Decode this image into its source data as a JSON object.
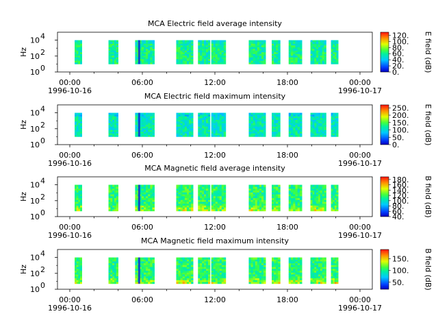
{
  "chart_data": [
    {
      "type": "heatmap",
      "title": "MCA  Electric field average intensity",
      "ylabel": "Hz",
      "y_scale": "log",
      "y_ticks": [
        "10",
        "10",
        "10"
      ],
      "y_tick_exponents": [
        "0",
        "2",
        "4"
      ],
      "x_ticks": [
        "00:00",
        "06:00",
        "12:00",
        "18:00",
        "00:00"
      ],
      "x_date_start": "1996-10-16",
      "x_date_end": "1996-10-17",
      "colorbar": {
        "label": "E field (dB)",
        "ticks": [
          "0.",
          "20.",
          "40.",
          "60.",
          "80.",
          "100.",
          "120."
        ],
        "range": [
          0,
          130
        ]
      },
      "data_intervals_hours": [
        [
          0.4,
          1.0
        ],
        [
          3.2,
          4.0
        ],
        [
          5.4,
          7.0
        ],
        [
          8.8,
          10.2
        ],
        [
          10.6,
          11.6
        ],
        [
          11.7,
          12.9
        ],
        [
          14.8,
          16.2
        ],
        [
          16.7,
          17.4
        ],
        [
          18.1,
          19.2
        ],
        [
          19.9,
          21.2
        ],
        [
          21.6,
          22.2
        ]
      ],
      "freq_range_hz": [
        10,
        10000
      ],
      "mean_level": 60
    },
    {
      "type": "heatmap",
      "title": "MCA  Electric field maximum intensity",
      "ylabel": "Hz",
      "y_scale": "log",
      "y_ticks": [
        "10",
        "10",
        "10"
      ],
      "y_tick_exponents": [
        "0",
        "2",
        "4"
      ],
      "x_ticks": [
        "00:00",
        "06:00",
        "12:00",
        "18:00",
        "00:00"
      ],
      "x_date_start": "1996-10-16",
      "x_date_end": "1996-10-17",
      "colorbar": {
        "label": "E field (dB)",
        "ticks": [
          "0.",
          "50.",
          "100.",
          "150.",
          "200.",
          "250."
        ],
        "range": [
          0,
          270
        ]
      },
      "data_intervals_hours": [
        [
          0.4,
          1.0
        ],
        [
          3.2,
          4.0
        ],
        [
          5.4,
          7.0
        ],
        [
          8.8,
          10.2
        ],
        [
          10.6,
          11.6
        ],
        [
          11.7,
          12.9
        ],
        [
          14.8,
          16.2
        ],
        [
          16.7,
          17.4
        ],
        [
          18.1,
          19.2
        ],
        [
          19.9,
          21.2
        ],
        [
          21.6,
          22.2
        ]
      ],
      "freq_range_hz": [
        10,
        10000
      ],
      "mean_level": 110
    },
    {
      "type": "heatmap",
      "title": "MCA  Magnetic field average intensity",
      "ylabel": "Hz",
      "y_scale": "log",
      "y_ticks": [
        "10",
        "10",
        "10"
      ],
      "y_tick_exponents": [
        "0",
        "2",
        "4"
      ],
      "x_ticks": [
        "00:00",
        "06:00",
        "12:00",
        "18:00",
        "00:00"
      ],
      "x_date_start": "1996-10-16",
      "x_date_end": "1996-10-17",
      "colorbar": {
        "label": "B field (dB)",
        "ticks": [
          "40.",
          "60.",
          "80.",
          "100.",
          "120.",
          "140.",
          "160.",
          "180."
        ],
        "range": [
          40,
          190
        ]
      },
      "data_intervals_hours": [
        [
          0.4,
          1.0
        ],
        [
          3.2,
          4.0
        ],
        [
          5.4,
          7.0
        ],
        [
          8.8,
          10.2
        ],
        [
          10.6,
          11.6
        ],
        [
          11.7,
          12.9
        ],
        [
          14.8,
          16.2
        ],
        [
          16.7,
          17.4
        ],
        [
          18.1,
          19.2
        ],
        [
          19.9,
          21.2
        ],
        [
          21.6,
          22.2
        ]
      ],
      "freq_range_hz": [
        5,
        10000
      ],
      "mean_level": 115
    },
    {
      "type": "heatmap",
      "title": "MCA  Magnetic field maximum intensity",
      "ylabel": "Hz",
      "y_scale": "log",
      "y_ticks": [
        "10",
        "10",
        "10"
      ],
      "y_tick_exponents": [
        "0",
        "2",
        "4"
      ],
      "x_ticks": [
        "00:00",
        "06:00",
        "12:00",
        "18:00",
        "00:00"
      ],
      "x_date_start": "1996-10-16",
      "x_date_end": "1996-10-17",
      "colorbar": {
        "label": "B field (dB)",
        "ticks": [
          "50.",
          "100.",
          "150."
        ],
        "range": [
          20,
          190
        ]
      },
      "data_intervals_hours": [
        [
          0.4,
          1.0
        ],
        [
          3.2,
          4.0
        ],
        [
          5.4,
          7.0
        ],
        [
          8.8,
          10.2
        ],
        [
          10.6,
          11.6
        ],
        [
          11.7,
          12.9
        ],
        [
          14.8,
          16.2
        ],
        [
          16.7,
          17.4
        ],
        [
          18.1,
          19.2
        ],
        [
          19.9,
          21.2
        ],
        [
          21.6,
          22.2
        ]
      ],
      "freq_range_hz": [
        5,
        10000
      ],
      "mean_level": 105
    }
  ]
}
